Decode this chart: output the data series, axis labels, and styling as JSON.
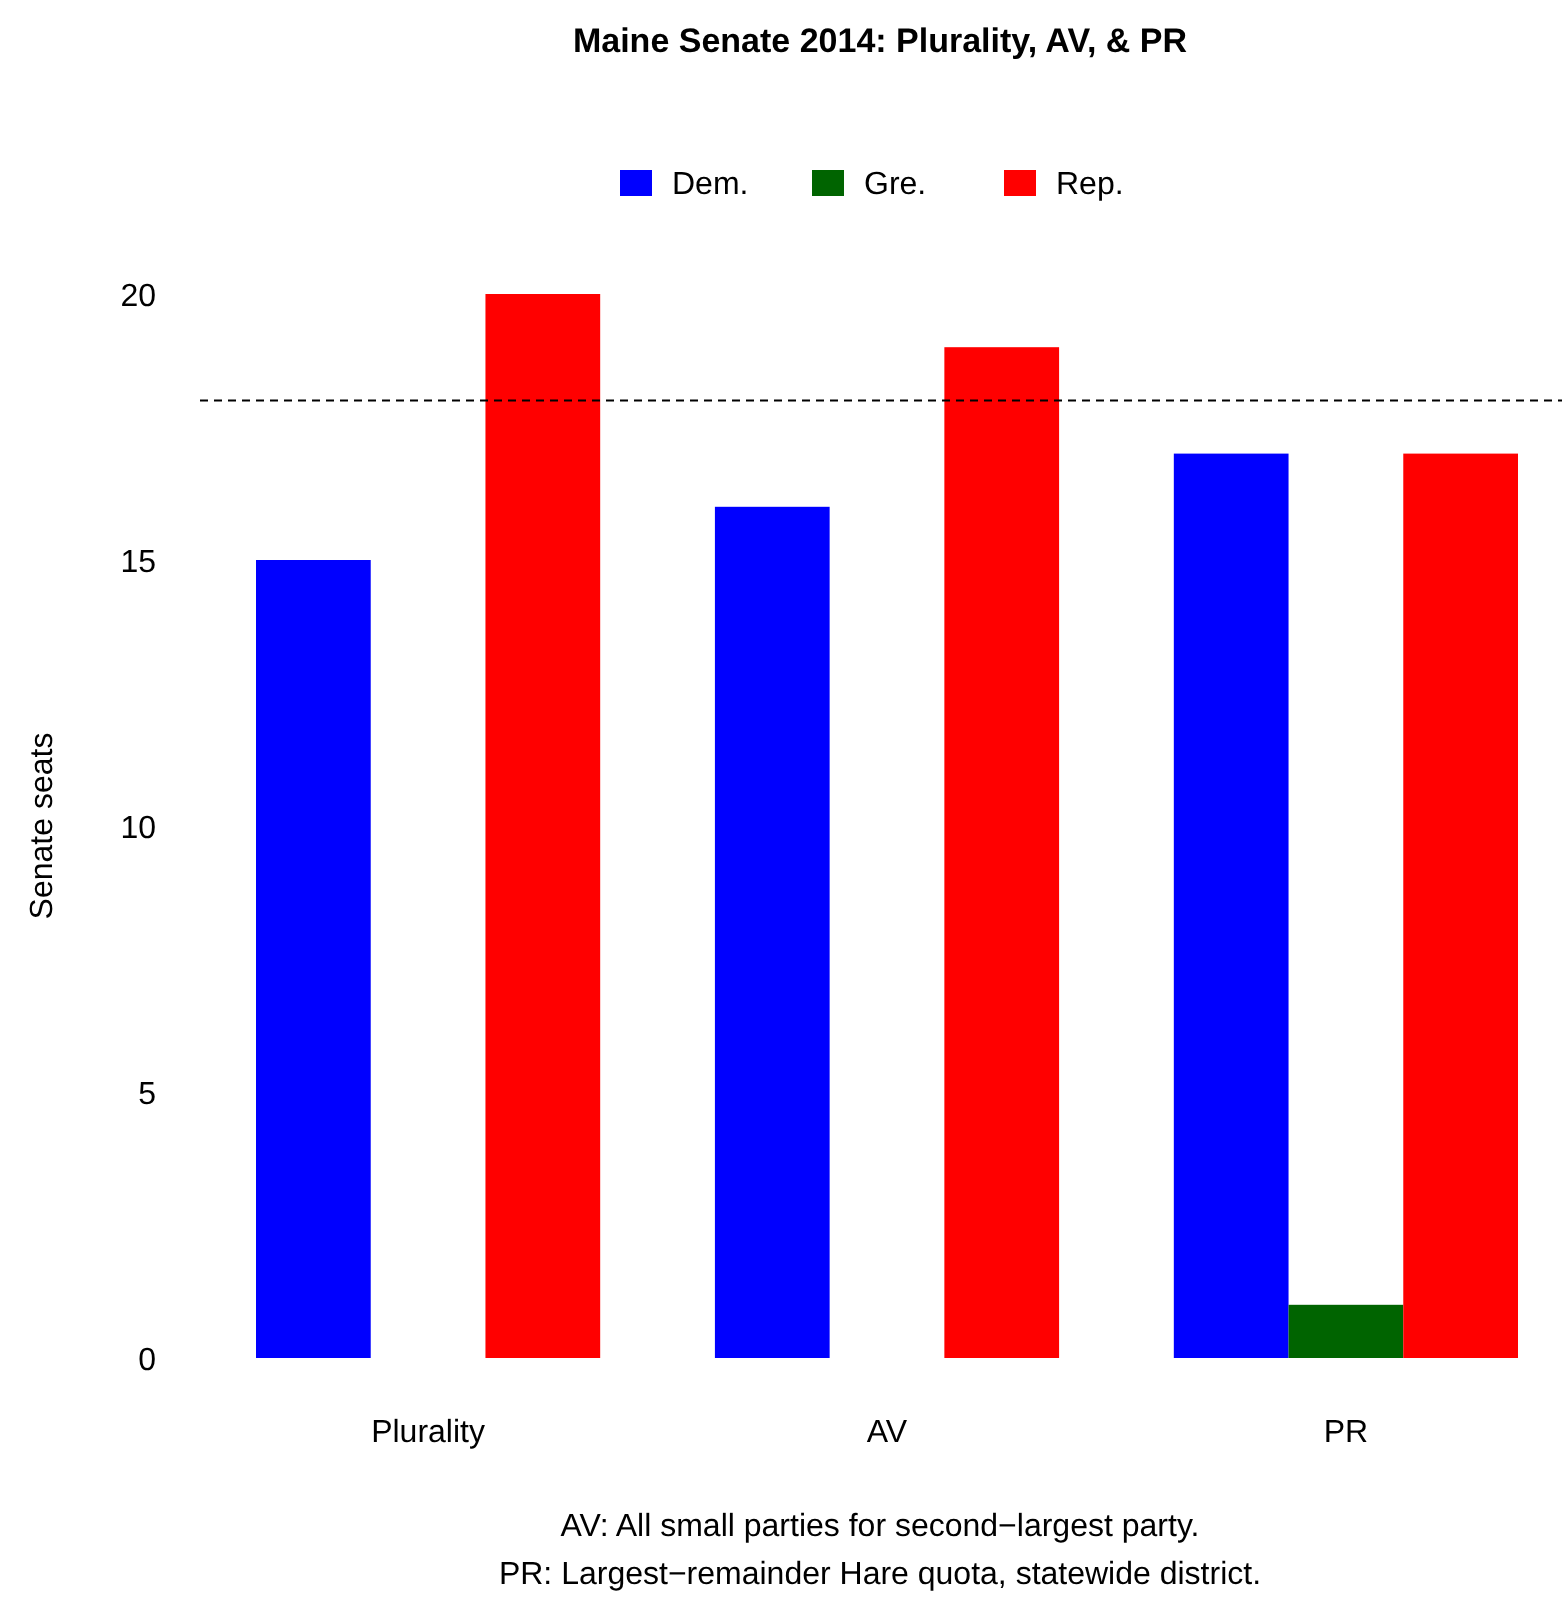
{
  "chart_data": {
    "type": "bar",
    "title": "Maine Senate 2014: Plurality, AV, & PR",
    "ylabel": "Senate seats",
    "categories": [
      "Plurality",
      "AV",
      "PR"
    ],
    "series": [
      {
        "name": "Dem.",
        "color": "#0000ff",
        "values": [
          15,
          16,
          17
        ]
      },
      {
        "name": "Gre.",
        "color": "#006400",
        "values": [
          0,
          0,
          1
        ]
      },
      {
        "name": "Rep.",
        "color": "#ff0000",
        "values": [
          20,
          19,
          17
        ]
      }
    ],
    "ylim": [
      0,
      20
    ],
    "yticks": [
      0,
      5,
      10,
      15,
      20
    ],
    "grid": false,
    "legend": "top",
    "ref_lines": [
      {
        "axis": "y",
        "value": 18,
        "line_style": "dashed",
        "color": "#000000"
      }
    ],
    "annotations": [
      "AV: All small parties for second−largest party.",
      "PR: Largest−remainder Hare quota, statewide district."
    ]
  }
}
